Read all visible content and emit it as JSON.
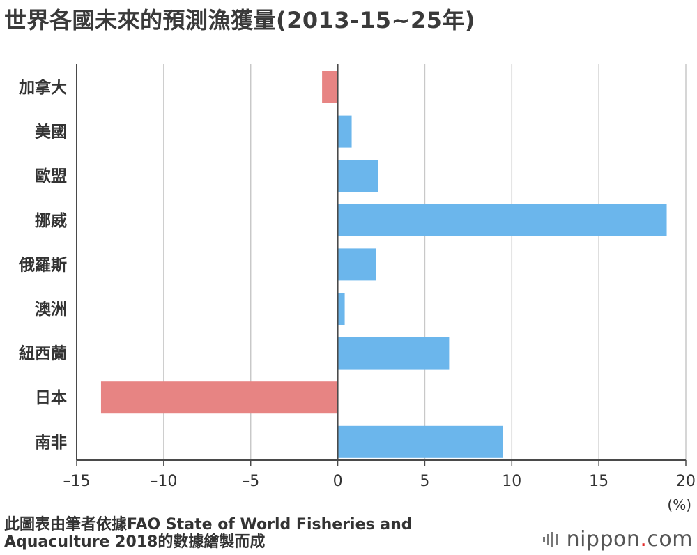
{
  "page": {
    "title": "世界各國未來的預測漁獲量(2013-15~25年)",
    "unit": "(%)",
    "source": "此圖表由筆者依據FAO State of World Fisheries and Aquaculture 2018的數據繪製而成",
    "brand": {
      "name": "nippon",
      "dot": ".",
      "suffix": "com"
    }
  },
  "colors": {
    "positive": "#6bb6ec",
    "negative": "#e78483",
    "gridline": "#c8c8c8",
    "axis": "#4a4a4a",
    "brand_dot": "#e32a2a"
  },
  "chart_data": {
    "type": "bar",
    "orientation": "horizontal",
    "title": "世界各國未來的預測漁獲量(2013-15~25年)",
    "unit": "(%)",
    "categories": [
      "加拿大",
      "美國",
      "歐盟",
      "挪威",
      "俄羅斯",
      "澳洲",
      "紐西蘭",
      "日本",
      "南非"
    ],
    "values": [
      -0.9,
      0.8,
      2.3,
      18.9,
      2.2,
      0.4,
      6.4,
      -13.6,
      9.5
    ],
    "xlim": [
      -15,
      20
    ],
    "xticks": [
      -15,
      -10,
      -5,
      0,
      5,
      10,
      15,
      20
    ],
    "xtick_labels": [
      "–15",
      "–10",
      "–5",
      "0",
      "5",
      "10",
      "15",
      "20"
    ],
    "grid": true,
    "legend": "none"
  }
}
